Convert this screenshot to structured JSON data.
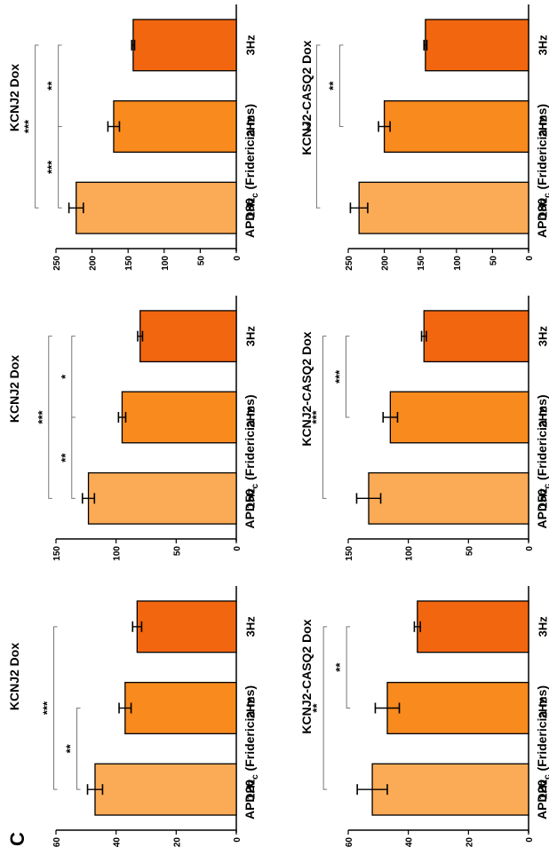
{
  "panel_letter": "C",
  "colors": {
    "1Hz": "#FBAA55",
    "2Hz": "#F88A1E",
    "3Hz": "#F2660F",
    "outline": "#000000",
    "bracket": "#888888"
  },
  "chart_data": [
    {
      "id": "kcnj2-apd20",
      "type": "bar",
      "title": "KCNJ2 Dox",
      "ylabel": "APD20",
      "ylabel_sub": "c",
      "ylabel_rest": " (Fridericia ms)",
      "categories": [
        "1Hz",
        "2Hz",
        "3Hz"
      ],
      "values": [
        47,
        37,
        33
      ],
      "errors": [
        2.5,
        2,
        1.5
      ],
      "ylim": [
        0,
        60
      ],
      "yticks": [
        "0",
        "20",
        "40",
        "60"
      ],
      "significance": [
        {
          "from": 0,
          "to": 1,
          "label": "**"
        },
        {
          "from": 0,
          "to": 2,
          "label": "***"
        }
      ]
    },
    {
      "id": "kcnj2-apd50",
      "type": "bar",
      "title": "KCNJ2 Dox",
      "ylabel": "APD50",
      "ylabel_sub": "c",
      "ylabel_rest": " (Fridericia ms)",
      "categories": [
        "1Hz",
        "2Hz",
        "3Hz"
      ],
      "values": [
        123,
        95,
        80
      ],
      "errors": [
        5,
        3,
        2
      ],
      "ylim": [
        0,
        150
      ],
      "yticks": [
        "0",
        "50",
        "100",
        "150"
      ],
      "significance": [
        {
          "from": 0,
          "to": 1,
          "label": "**"
        },
        {
          "from": 1,
          "to": 2,
          "label": "*"
        },
        {
          "from": 0,
          "to": 2,
          "label": "***"
        }
      ]
    },
    {
      "id": "kcnj2-apd80",
      "type": "bar",
      "title": "KCNJ2 Dox",
      "ylabel": "APD80",
      "ylabel_sub": "c",
      "ylabel_rest": " (Fridericia ms)",
      "categories": [
        "1Hz",
        "2Hz",
        "3Hz"
      ],
      "values": [
        222,
        170,
        143
      ],
      "errors": [
        10,
        8,
        2
      ],
      "ylim": [
        0,
        250
      ],
      "yticks": [
        "0",
        "50",
        "100",
        "150",
        "200",
        "250"
      ],
      "significance": [
        {
          "from": 0,
          "to": 1,
          "label": "***"
        },
        {
          "from": 1,
          "to": 2,
          "label": "**"
        },
        {
          "from": 0,
          "to": 2,
          "label": "***"
        }
      ]
    },
    {
      "id": "casq2-apd20",
      "type": "bar",
      "title": "KCNJ2-CASQ2 Dox",
      "ylabel": "APD20",
      "ylabel_sub": "c",
      "ylabel_rest": " (Fridericia ms)",
      "categories": [
        "1Hz",
        "2Hz",
        "3Hz"
      ],
      "values": [
        52,
        47,
        37
      ],
      "errors": [
        5,
        4,
        1
      ],
      "ylim": [
        0,
        60
      ],
      "yticks": [
        "0",
        "20",
        "40",
        "60"
      ],
      "significance": [
        {
          "from": 1,
          "to": 2,
          "label": "**"
        },
        {
          "from": 0,
          "to": 2,
          "label": "**"
        }
      ]
    },
    {
      "id": "casq2-apd50",
      "type": "bar",
      "title": "KCNJ2-CASQ2 Dox",
      "ylabel": "APD50",
      "ylabel_sub": "c",
      "ylabel_rest": " (Fridericia ms)",
      "categories": [
        "1Hz",
        "2Hz",
        "3Hz"
      ],
      "values": [
        133,
        115,
        87
      ],
      "errors": [
        10,
        6,
        2
      ],
      "ylim": [
        0,
        150
      ],
      "yticks": [
        "0",
        "50",
        "100",
        "150"
      ],
      "significance": [
        {
          "from": 1,
          "to": 2,
          "label": "***"
        },
        {
          "from": 0,
          "to": 2,
          "label": "***"
        }
      ]
    },
    {
      "id": "casq2-apd80",
      "type": "bar",
      "title": "KCNJ2-CASQ2 Dox",
      "ylabel": "APD80",
      "ylabel_sub": "c",
      "ylabel_rest": " (Fridericia ms)",
      "categories": [
        "1Hz",
        "2Hz",
        "3Hz"
      ],
      "values": [
        235,
        200,
        143
      ],
      "errors": [
        12,
        8,
        2
      ],
      "ylim": [
        0,
        250
      ],
      "yticks": [
        "0",
        "50",
        "100",
        "150",
        "200",
        "250"
      ],
      "significance": [
        {
          "from": 1,
          "to": 2,
          "label": "**"
        },
        {
          "from": 0,
          "to": 2,
          "label": "**"
        }
      ]
    }
  ]
}
